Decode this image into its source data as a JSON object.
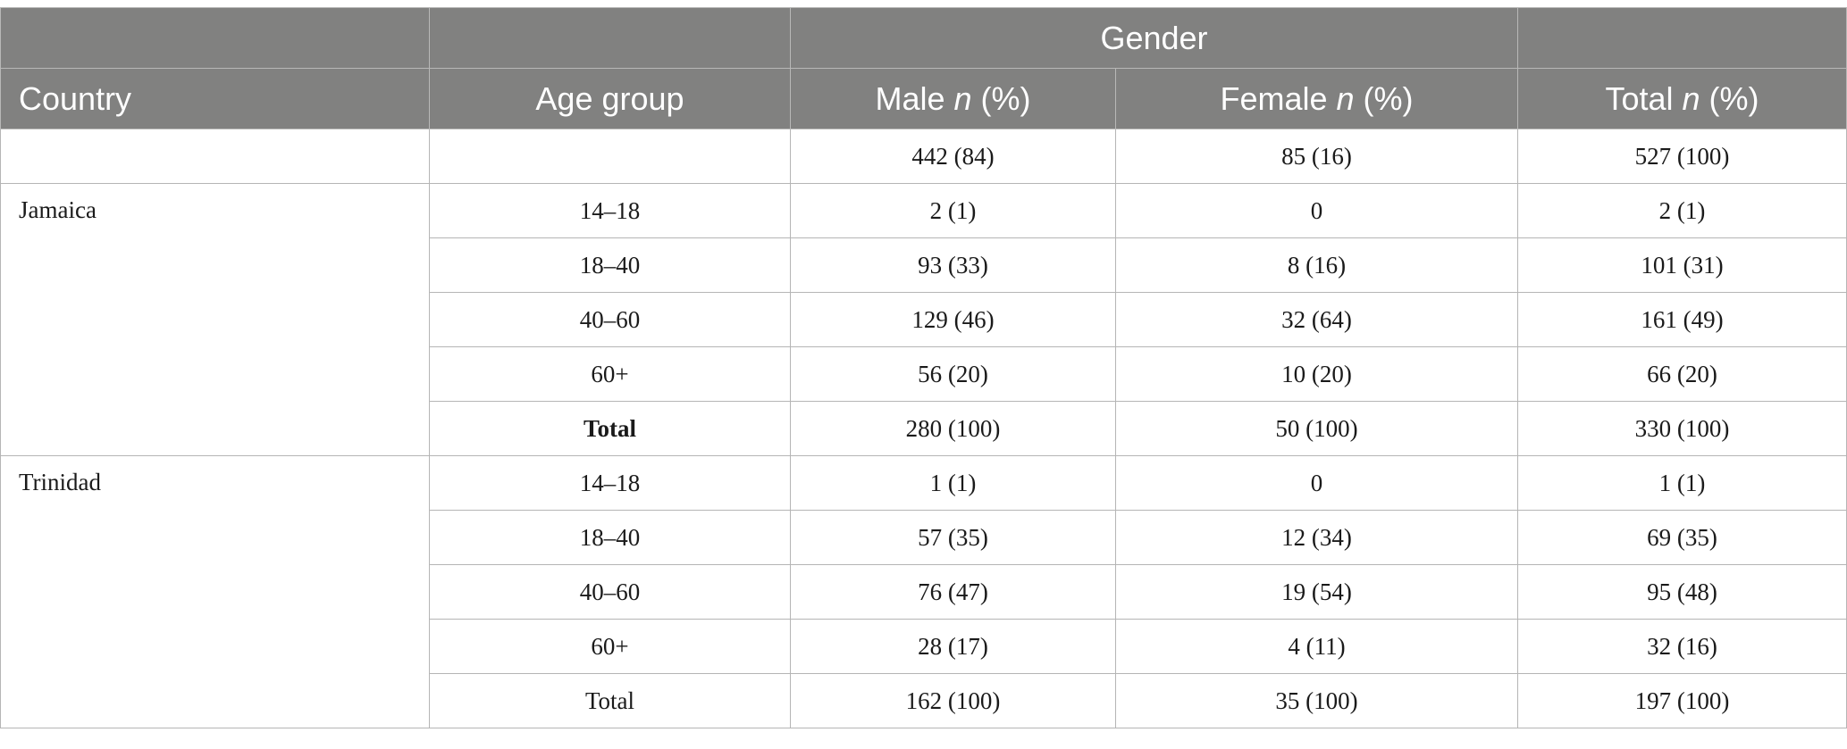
{
  "header": {
    "group_label": "Gender",
    "country": "Country",
    "age_group": "Age group",
    "male_prefix": "Male ",
    "female_prefix": "Female ",
    "total_prefix": "Total ",
    "n_symbol": "n",
    "pct_suffix": " (%)"
  },
  "overall": {
    "male": "442 (84)",
    "female": "85 (16)",
    "total": "527 (100)"
  },
  "groups": [
    {
      "country": "Jamaica",
      "rows": [
        {
          "age": "14–18",
          "male": "2 (1)",
          "female": "0",
          "total": "2 (1)"
        },
        {
          "age": "18–40",
          "male": "93 (33)",
          "female": "8 (16)",
          "total": "101 (31)"
        },
        {
          "age": "40–60",
          "male": "129 (46)",
          "female": "32 (64)",
          "total": "161 (49)"
        },
        {
          "age": "60+",
          "male": "56 (20)",
          "female": "10 (20)",
          "total": "66 (20)"
        },
        {
          "age": "Total",
          "male": "280 (100)",
          "female": "50 (100)",
          "total": "330 (100)"
        }
      ]
    },
    {
      "country": "Trinidad",
      "rows": [
        {
          "age": "14–18",
          "male": "1 (1)",
          "female": "0",
          "total": "1 (1)"
        },
        {
          "age": "18–40",
          "male": "57 (35)",
          "female": "12 (34)",
          "total": "69 (35)"
        },
        {
          "age": "40–60",
          "male": "76 (47)",
          "female": "19 (54)",
          "total": "95 (48)"
        },
        {
          "age": "60+",
          "male": "28 (17)",
          "female": "4 (11)",
          "total": "32 (16)"
        },
        {
          "age": "Total",
          "male": "162 (100)",
          "female": "35 (100)",
          "total": "197 (100)"
        }
      ]
    }
  ]
}
